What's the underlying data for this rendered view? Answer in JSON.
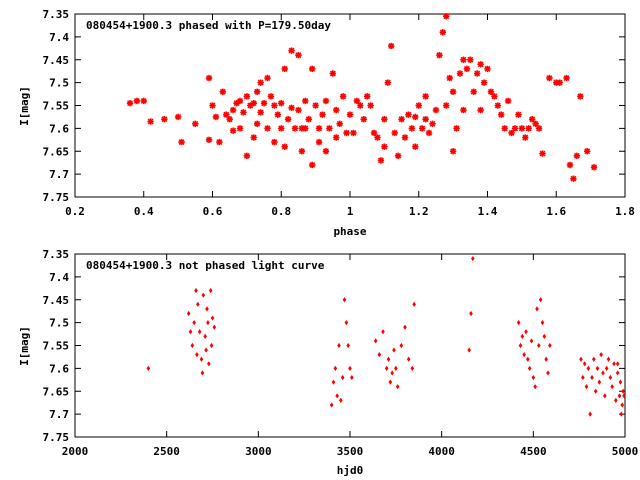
{
  "colors": {
    "points": "#ff0000",
    "axes": "#000000",
    "background": "#ffffff"
  },
  "chart_data": [
    {
      "type": "scatter",
      "title": "080454+1900.3 phased with P=179.50day",
      "xlabel": "phase",
      "ylabel": "I[mag]",
      "xlim": [
        0.2,
        1.8
      ],
      "ylim": [
        7.35,
        7.75
      ],
      "y_inverted": true,
      "grid": false,
      "marker": "asterisk",
      "xticks": [
        "0.2",
        "0.4",
        "0.6",
        "0.8",
        "1",
        "1.2",
        "1.4",
        "1.6",
        "1.8"
      ],
      "yticks": [
        "7.35",
        "7.4",
        "7.45",
        "7.5",
        "7.55",
        "7.6",
        "7.65",
        "7.7",
        "7.75"
      ],
      "points": [
        [
          0.36,
          7.545
        ],
        [
          0.38,
          7.54
        ],
        [
          0.4,
          7.54
        ],
        [
          0.42,
          7.585
        ],
        [
          0.46,
          7.58
        ],
        [
          0.5,
          7.575
        ],
        [
          0.51,
          7.63
        ],
        [
          0.55,
          7.59
        ],
        [
          0.59,
          7.49
        ],
        [
          0.59,
          7.625
        ],
        [
          0.6,
          7.55
        ],
        [
          0.61,
          7.575
        ],
        [
          0.62,
          7.63
        ],
        [
          0.63,
          7.52
        ],
        [
          0.64,
          7.57
        ],
        [
          0.65,
          7.58
        ],
        [
          0.66,
          7.56
        ],
        [
          0.66,
          7.605
        ],
        [
          0.67,
          7.545
        ],
        [
          0.68,
          7.54
        ],
        [
          0.68,
          7.6
        ],
        [
          0.69,
          7.565
        ],
        [
          0.7,
          7.53
        ],
        [
          0.7,
          7.66
        ],
        [
          0.71,
          7.55
        ],
        [
          0.72,
          7.545
        ],
        [
          0.72,
          7.62
        ],
        [
          0.73,
          7.59
        ],
        [
          0.73,
          7.52
        ],
        [
          0.74,
          7.5
        ],
        [
          0.74,
          7.565
        ],
        [
          0.75,
          7.545
        ],
        [
          0.76,
          7.49
        ],
        [
          0.76,
          7.6
        ],
        [
          0.77,
          7.53
        ],
        [
          0.78,
          7.55
        ],
        [
          0.78,
          7.63
        ],
        [
          0.79,
          7.57
        ],
        [
          0.8,
          7.6
        ],
        [
          0.8,
          7.545
        ],
        [
          0.81,
          7.47
        ],
        [
          0.81,
          7.64
        ],
        [
          0.82,
          7.58
        ],
        [
          0.83,
          7.43
        ],
        [
          0.83,
          7.555
        ],
        [
          0.84,
          7.6
        ],
        [
          0.85,
          7.44
        ],
        [
          0.85,
          7.56
        ],
        [
          0.86,
          7.6
        ],
        [
          0.86,
          7.65
        ],
        [
          0.87,
          7.54
        ],
        [
          0.87,
          7.6
        ],
        [
          0.88,
          7.58
        ],
        [
          0.89,
          7.47
        ],
        [
          0.89,
          7.68
        ],
        [
          0.9,
          7.55
        ],
        [
          0.91,
          7.6
        ],
        [
          0.91,
          7.63
        ],
        [
          0.92,
          7.57
        ],
        [
          0.93,
          7.54
        ],
        [
          0.93,
          7.65
        ],
        [
          0.94,
          7.6
        ],
        [
          0.95,
          7.48
        ],
        [
          0.96,
          7.56
        ],
        [
          0.96,
          7.62
        ],
        [
          0.97,
          7.59
        ],
        [
          0.98,
          7.53
        ],
        [
          0.99,
          7.61
        ],
        [
          1.0,
          7.57
        ],
        [
          1.01,
          7.61
        ],
        [
          1.02,
          7.54
        ],
        [
          1.03,
          7.55
        ],
        [
          1.04,
          7.58
        ],
        [
          1.05,
          7.53
        ],
        [
          1.06,
          7.55
        ],
        [
          1.07,
          7.61
        ],
        [
          1.08,
          7.62
        ],
        [
          1.09,
          7.67
        ],
        [
          1.1,
          7.58
        ],
        [
          1.1,
          7.64
        ],
        [
          1.11,
          7.5
        ],
        [
          1.12,
          7.42
        ],
        [
          1.13,
          7.61
        ],
        [
          1.14,
          7.66
        ],
        [
          1.15,
          7.58
        ],
        [
          1.16,
          7.62
        ],
        [
          1.17,
          7.57
        ],
        [
          1.18,
          7.6
        ],
        [
          1.19,
          7.64
        ],
        [
          1.19,
          7.575
        ],
        [
          1.2,
          7.55
        ],
        [
          1.21,
          7.6
        ],
        [
          1.22,
          7.53
        ],
        [
          1.22,
          7.58
        ],
        [
          1.23,
          7.61
        ],
        [
          1.24,
          7.59
        ],
        [
          1.25,
          7.56
        ],
        [
          1.26,
          7.44
        ],
        [
          1.27,
          7.39
        ],
        [
          1.28,
          7.355
        ],
        [
          1.28,
          7.55
        ],
        [
          1.29,
          7.49
        ],
        [
          1.3,
          7.52
        ],
        [
          1.3,
          7.65
        ],
        [
          1.31,
          7.6
        ],
        [
          1.32,
          7.48
        ],
        [
          1.33,
          7.45
        ],
        [
          1.33,
          7.56
        ],
        [
          1.34,
          7.47
        ],
        [
          1.35,
          7.45
        ],
        [
          1.36,
          7.52
        ],
        [
          1.37,
          7.48
        ],
        [
          1.38,
          7.46
        ],
        [
          1.38,
          7.56
        ],
        [
          1.39,
          7.5
        ],
        [
          1.4,
          7.47
        ],
        [
          1.41,
          7.52
        ],
        [
          1.42,
          7.53
        ],
        [
          1.43,
          7.55
        ],
        [
          1.44,
          7.57
        ],
        [
          1.45,
          7.6
        ],
        [
          1.46,
          7.54
        ],
        [
          1.47,
          7.61
        ],
        [
          1.48,
          7.6
        ],
        [
          1.49,
          7.57
        ],
        [
          1.5,
          7.6
        ],
        [
          1.51,
          7.62
        ],
        [
          1.52,
          7.6
        ],
        [
          1.53,
          7.58
        ],
        [
          1.54,
          7.59
        ],
        [
          1.55,
          7.6
        ],
        [
          1.56,
          7.655
        ],
        [
          1.58,
          7.49
        ],
        [
          1.6,
          7.5
        ],
        [
          1.61,
          7.5
        ],
        [
          1.63,
          7.49
        ],
        [
          1.64,
          7.68
        ],
        [
          1.65,
          7.71
        ],
        [
          1.66,
          7.66
        ],
        [
          1.67,
          7.53
        ],
        [
          1.69,
          7.65
        ],
        [
          1.71,
          7.685
        ]
      ]
    },
    {
      "type": "scatter",
      "title": "080454+1900.3 not phased light curve",
      "xlabel": "hjd0",
      "ylabel": "I[mag]",
      "xlim": [
        2000,
        5000
      ],
      "ylim": [
        7.35,
        7.75
      ],
      "y_inverted": true,
      "grid": false,
      "marker": "diamond",
      "xticks": [
        "2000",
        "2500",
        "3000",
        "3500",
        "4000",
        "4500",
        "5000"
      ],
      "yticks": [
        "7.35",
        "7.4",
        "7.45",
        "7.5",
        "7.55",
        "7.6",
        "7.65",
        "7.7",
        "7.75"
      ],
      "points": [
        [
          2400,
          7.6
        ],
        [
          2620,
          7.48
        ],
        [
          2630,
          7.52
        ],
        [
          2640,
          7.55
        ],
        [
          2650,
          7.5
        ],
        [
          2660,
          7.43
        ],
        [
          2665,
          7.57
        ],
        [
          2670,
          7.46
        ],
        [
          2680,
          7.52
        ],
        [
          2690,
          7.58
        ],
        [
          2695,
          7.61
        ],
        [
          2700,
          7.44
        ],
        [
          2710,
          7.53
        ],
        [
          2715,
          7.56
        ],
        [
          2720,
          7.47
        ],
        [
          2725,
          7.5
        ],
        [
          2730,
          7.59
        ],
        [
          2740,
          7.43
        ],
        [
          2745,
          7.55
        ],
        [
          2750,
          7.49
        ],
        [
          2760,
          7.51
        ],
        [
          3400,
          7.68
        ],
        [
          3410,
          7.63
        ],
        [
          3420,
          7.6
        ],
        [
          3430,
          7.66
        ],
        [
          3440,
          7.55
        ],
        [
          3450,
          7.67
        ],
        [
          3460,
          7.62
        ],
        [
          3470,
          7.45
        ],
        [
          3480,
          7.5
        ],
        [
          3490,
          7.55
        ],
        [
          3500,
          7.6
        ],
        [
          3510,
          7.62
        ],
        [
          3640,
          7.54
        ],
        [
          3660,
          7.57
        ],
        [
          3680,
          7.52
        ],
        [
          3700,
          7.6
        ],
        [
          3710,
          7.58
        ],
        [
          3720,
          7.63
        ],
        [
          3730,
          7.61
        ],
        [
          3740,
          7.56
        ],
        [
          3750,
          7.6
        ],
        [
          3760,
          7.64
        ],
        [
          3780,
          7.55
        ],
        [
          3800,
          7.51
        ],
        [
          3820,
          7.58
        ],
        [
          3840,
          7.6
        ],
        [
          3850,
          7.46
        ],
        [
          4150,
          7.56
        ],
        [
          4160,
          7.48
        ],
        [
          4170,
          7.36
        ],
        [
          4420,
          7.5
        ],
        [
          4430,
          7.55
        ],
        [
          4440,
          7.53
        ],
        [
          4450,
          7.57
        ],
        [
          4460,
          7.52
        ],
        [
          4470,
          7.58
        ],
        [
          4480,
          7.6
        ],
        [
          4490,
          7.54
        ],
        [
          4500,
          7.62
        ],
        [
          4510,
          7.64
        ],
        [
          4520,
          7.47
        ],
        [
          4530,
          7.55
        ],
        [
          4540,
          7.45
        ],
        [
          4550,
          7.5
        ],
        [
          4560,
          7.53
        ],
        [
          4570,
          7.58
        ],
        [
          4580,
          7.61
        ],
        [
          4590,
          7.55
        ],
        [
          4760,
          7.58
        ],
        [
          4770,
          7.62
        ],
        [
          4780,
          7.59
        ],
        [
          4790,
          7.64
        ],
        [
          4800,
          7.6
        ],
        [
          4810,
          7.7
        ],
        [
          4820,
          7.62
        ],
        [
          4830,
          7.58
        ],
        [
          4840,
          7.65
        ],
        [
          4850,
          7.6
        ],
        [
          4860,
          7.63
        ],
        [
          4870,
          7.57
        ],
        [
          4880,
          7.61
        ],
        [
          4890,
          7.66
        ],
        [
          4900,
          7.6
        ],
        [
          4910,
          7.58
        ],
        [
          4920,
          7.62
        ],
        [
          4930,
          7.64
        ],
        [
          4940,
          7.59
        ],
        [
          4950,
          7.67
        ],
        [
          4960,
          7.61
        ],
        [
          4970,
          7.66
        ],
        [
          4980,
          7.7
        ],
        [
          4990,
          7.65
        ],
        [
          4960,
          7.59
        ],
        [
          4975,
          7.63
        ],
        [
          4985,
          7.68
        ],
        [
          4995,
          7.66
        ]
      ]
    }
  ]
}
